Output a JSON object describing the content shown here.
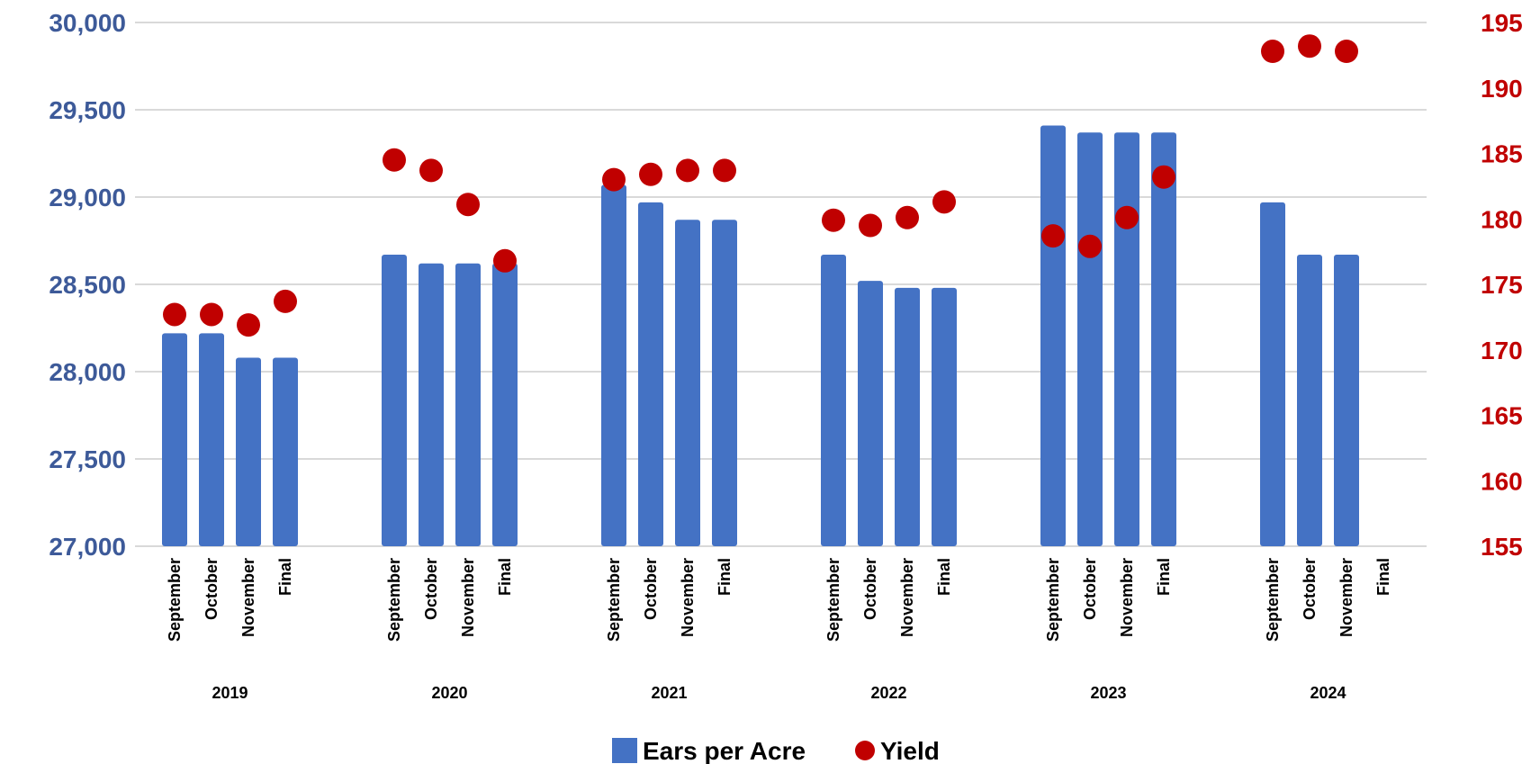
{
  "chart_data": {
    "type": "bar",
    "groups": [
      "2019",
      "2020",
      "2021",
      "2022",
      "2023",
      "2024"
    ],
    "months": [
      "September",
      "October",
      "November",
      "Final"
    ],
    "series": [
      {
        "name": "Ears per Acre",
        "type": "bar",
        "axis": "left",
        "color": "#4472c4",
        "values": [
          [
            28220,
            28220,
            28080,
            28080
          ],
          [
            28670,
            28620,
            28620,
            28620
          ],
          [
            29070,
            28970,
            28870,
            28870
          ],
          [
            28670,
            28520,
            28480,
            28480
          ],
          [
            29410,
            29370,
            29370,
            29370
          ],
          [
            28970,
            28670,
            28670,
            null
          ]
        ]
      },
      {
        "name": "Yield",
        "type": "scatter",
        "axis": "right",
        "color": "#c00000",
        "values": [
          [
            172.7,
            172.7,
            171.9,
            173.7
          ],
          [
            184.5,
            183.7,
            181.1,
            176.8
          ],
          [
            183.0,
            183.4,
            183.7,
            183.7
          ],
          [
            179.9,
            179.5,
            180.1,
            181.3
          ],
          [
            178.7,
            177.9,
            180.1,
            183.2
          ],
          [
            192.8,
            193.2,
            192.8,
            null
          ]
        ]
      }
    ],
    "y_left": {
      "min": 27000,
      "max": 30000,
      "ticks": [
        "27,000",
        "27,500",
        "28,000",
        "28,500",
        "29,000",
        "29,500",
        "30,000"
      ]
    },
    "y_right": {
      "min": 155,
      "max": 195,
      "ticks": [
        "155",
        "160",
        "165",
        "170",
        "175",
        "180",
        "185",
        "190",
        "195"
      ]
    },
    "grid": true,
    "legend": {
      "position": "bottom",
      "items": [
        "Ears per Acre",
        "Yield"
      ]
    }
  }
}
